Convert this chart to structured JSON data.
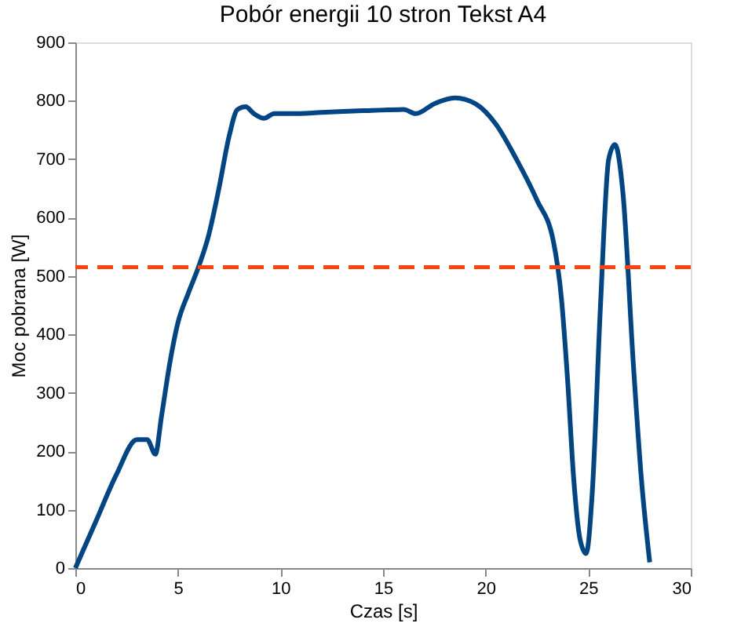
{
  "chart_data": {
    "type": "line",
    "title": "Pobór energii 10 stron Tekst A4",
    "xlabel": "Czas [s]",
    "ylabel": "Moc pobrana [W]",
    "xlim": [
      0,
      30
    ],
    "xticks": [
      0,
      5,
      10,
      15,
      20,
      25,
      30
    ],
    "ylim": [
      0,
      900
    ],
    "yticks": [
      0,
      100,
      200,
      300,
      400,
      500,
      600,
      700,
      800,
      900
    ],
    "grid": false,
    "marker": "none",
    "line_style": "solid",
    "series": [
      {
        "color": "#004586",
        "x": [
          0,
          1,
          2,
          3,
          3.5,
          3.9,
          4.2,
          4.6,
          5,
          5.5,
          6,
          6.5,
          7,
          7.5,
          7.9,
          8.3,
          8.7,
          9.2,
          9.7,
          10.5,
          12,
          14,
          16,
          16.6,
          17.5,
          18.5,
          19.5,
          20.5,
          21.5,
          22.5,
          23.3,
          23.7,
          24,
          24.3,
          24.6,
          24.9,
          25.2,
          25.6,
          26,
          26.3,
          26.7,
          27.2,
          27.6,
          28
        ],
        "values": [
          0,
          80,
          160,
          220,
          220,
          195,
          260,
          350,
          420,
          470,
          515,
          570,
          650,
          740,
          785,
          790,
          778,
          770,
          778,
          778,
          780,
          783,
          785,
          778,
          795,
          805,
          795,
          760,
          700,
          630,
          560,
          460,
          320,
          150,
          50,
          25,
          130,
          450,
          700,
          725,
          640,
          350,
          150,
          10
        ]
      }
    ],
    "ref_lines": [
      {
        "axis": "y",
        "value": 515,
        "color": "#ff420e",
        "line_style": "dashed"
      }
    ]
  }
}
